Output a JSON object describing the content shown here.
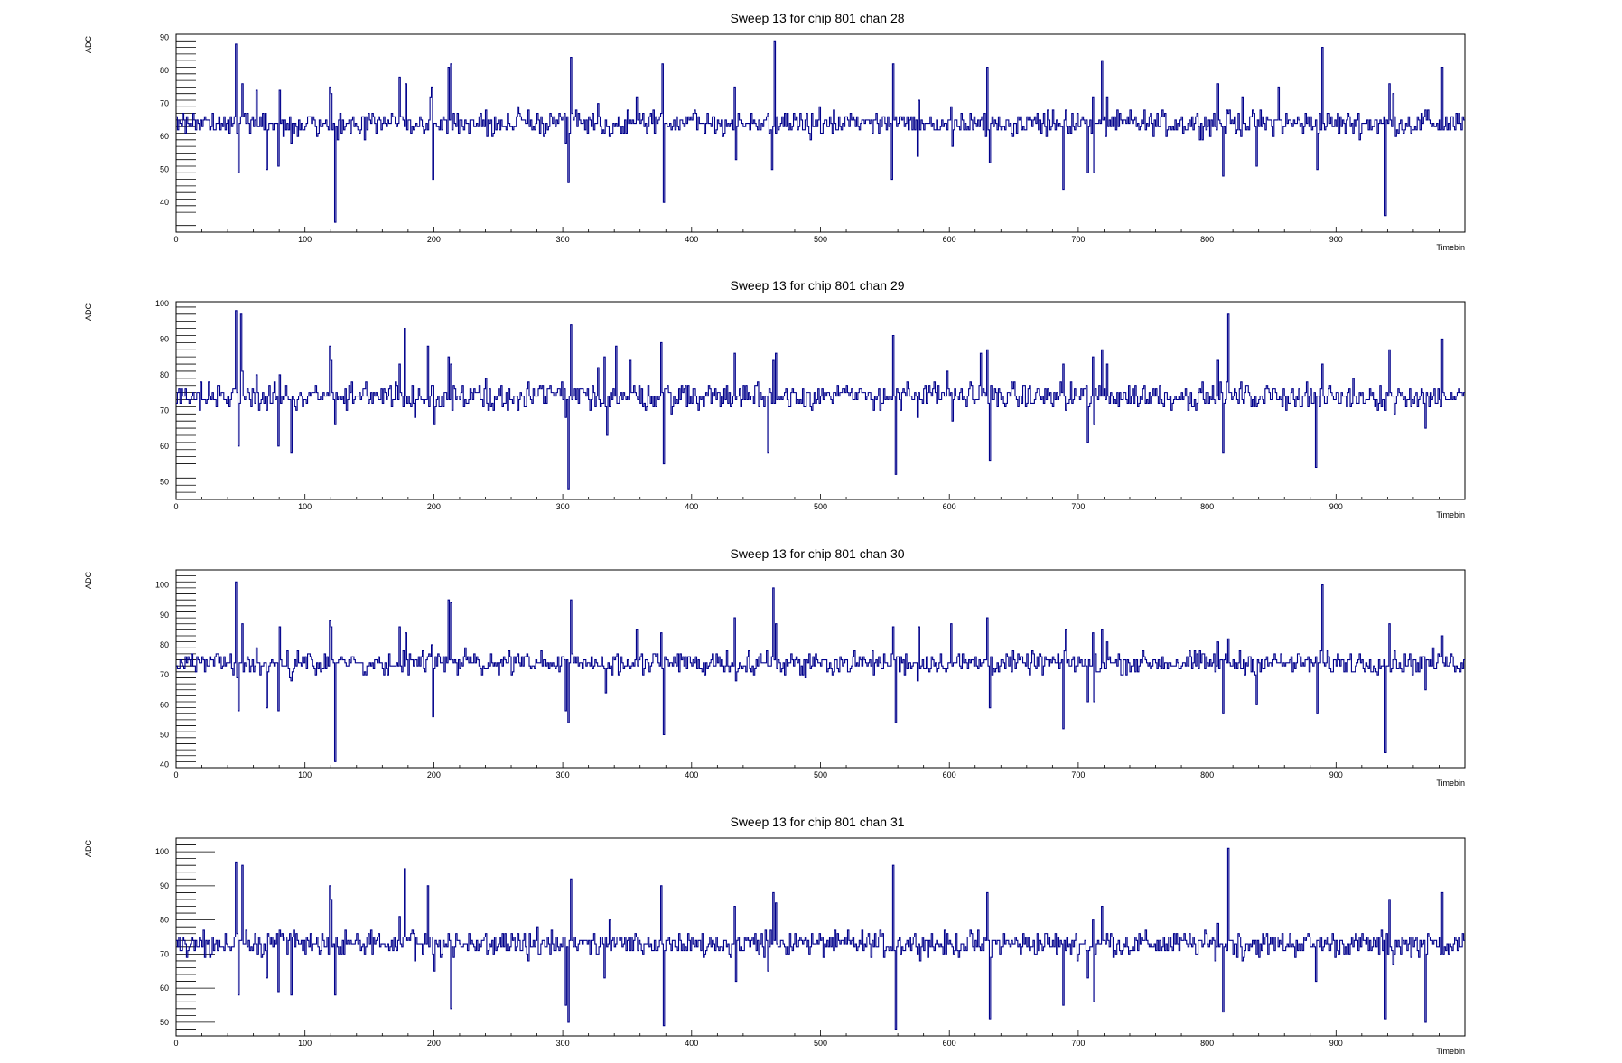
{
  "line_color": "#00008b",
  "x_ticks": [
    0,
    100,
    200,
    300,
    400,
    500,
    600,
    700,
    800,
    900
  ],
  "chart_data": [
    {
      "type": "line",
      "title": "Sweep 13 for chip 801 chan 28",
      "xlabel": "Timebin",
      "ylabel": "ADC",
      "xlim": [
        0,
        1000
      ],
      "ylim": [
        31,
        91
      ],
      "y_ticks": [
        40,
        50,
        60,
        70,
        80,
        90
      ],
      "baseline": 64,
      "noise": 1.8,
      "seed": 28,
      "spikes": [
        [
          46,
          88
        ],
        [
          48,
          49
        ],
        [
          51,
          76
        ],
        [
          62,
          74
        ],
        [
          70,
          50
        ],
        [
          79,
          51
        ],
        [
          80,
          74
        ],
        [
          89,
          58
        ],
        [
          119,
          75
        ],
        [
          120,
          73
        ],
        [
          123,
          34
        ],
        [
          173,
          78
        ],
        [
          178,
          76
        ],
        [
          197,
          72
        ],
        [
          198,
          75
        ],
        [
          199,
          47
        ],
        [
          211,
          81
        ],
        [
          213,
          82
        ],
        [
          306,
          84
        ],
        [
          304,
          46
        ],
        [
          302,
          58
        ],
        [
          327,
          70
        ],
        [
          332,
          61
        ],
        [
          336,
          60
        ],
        [
          357,
          72
        ],
        [
          362,
          67
        ],
        [
          377,
          82
        ],
        [
          378,
          40
        ],
        [
          433,
          75
        ],
        [
          434,
          53
        ],
        [
          464,
          89
        ],
        [
          462,
          50
        ],
        [
          556,
          82
        ],
        [
          555,
          47
        ],
        [
          575,
          54
        ],
        [
          576,
          71
        ],
        [
          601,
          69
        ],
        [
          602,
          57
        ],
        [
          625,
          66
        ],
        [
          629,
          81
        ],
        [
          631,
          52
        ],
        [
          688,
          44
        ],
        [
          690,
          68
        ],
        [
          707,
          49
        ],
        [
          711,
          72
        ],
        [
          712,
          49
        ],
        [
          718,
          83
        ],
        [
          722,
          72
        ],
        [
          808,
          76
        ],
        [
          812,
          48
        ],
        [
          816,
          67
        ],
        [
          827,
          72
        ],
        [
          838,
          51
        ],
        [
          855,
          75
        ],
        [
          885,
          50
        ],
        [
          889,
          87
        ],
        [
          938,
          36
        ],
        [
          941,
          76
        ],
        [
          944,
          73
        ],
        [
          969,
          68
        ],
        [
          982,
          81
        ]
      ]
    },
    {
      "type": "line",
      "title": "Sweep 13 for chip 801 chan 29",
      "xlabel": "Timebin",
      "ylabel": "ADC",
      "xlim": [
        0,
        1000
      ],
      "ylim": [
        45,
        100.5
      ],
      "y_ticks": [
        50,
        60,
        70,
        80,
        90,
        100
      ],
      "baseline": 74,
      "noise": 1.8,
      "seed": 29,
      "spikes": [
        [
          46,
          98
        ],
        [
          48,
          60
        ],
        [
          50,
          97
        ],
        [
          51,
          81
        ],
        [
          62,
          80
        ],
        [
          70,
          70
        ],
        [
          79,
          60
        ],
        [
          80,
          80
        ],
        [
          89,
          58
        ],
        [
          119,
          88
        ],
        [
          120,
          84
        ],
        [
          123,
          66
        ],
        [
          173,
          83
        ],
        [
          177,
          93
        ],
        [
          185,
          68
        ],
        [
          195,
          88
        ],
        [
          200,
          66
        ],
        [
          211,
          85
        ],
        [
          213,
          83
        ],
        [
          302,
          68
        ],
        [
          304,
          48
        ],
        [
          306,
          94
        ],
        [
          327,
          82
        ],
        [
          332,
          85
        ],
        [
          334,
          63
        ],
        [
          341,
          88
        ],
        [
          352,
          84
        ],
        [
          360,
          72
        ],
        [
          376,
          89
        ],
        [
          378,
          55
        ],
        [
          433,
          86
        ],
        [
          434,
          73
        ],
        [
          463,
          84
        ],
        [
          465,
          86
        ],
        [
          459,
          58
        ],
        [
          556,
          91
        ],
        [
          558,
          52
        ],
        [
          575,
          68
        ],
        [
          581,
          77
        ],
        [
          598,
          81
        ],
        [
          602,
          67
        ],
        [
          624,
          86
        ],
        [
          629,
          87
        ],
        [
          631,
          56
        ],
        [
          688,
          83
        ],
        [
          690,
          70
        ],
        [
          707,
          61
        ],
        [
          711,
          85
        ],
        [
          712,
          66
        ],
        [
          718,
          87
        ],
        [
          722,
          83
        ],
        [
          808,
          84
        ],
        [
          812,
          58
        ],
        [
          816,
          97
        ],
        [
          827,
          73
        ],
        [
          838,
          71
        ],
        [
          855,
          73
        ],
        [
          884,
          54
        ],
        [
          889,
          83
        ],
        [
          938,
          70
        ],
        [
          941,
          87
        ],
        [
          944,
          74
        ],
        [
          969,
          65
        ],
        [
          982,
          90
        ]
      ]
    },
    {
      "type": "line",
      "title": "Sweep 13 for chip 801 chan 30",
      "xlabel": "Timebin",
      "ylabel": "ADC",
      "xlim": [
        0,
        1000
      ],
      "ylim": [
        39,
        105
      ],
      "y_ticks": [
        40,
        50,
        60,
        70,
        80,
        90,
        100
      ],
      "baseline": 74,
      "noise": 1.8,
      "seed": 30,
      "spikes": [
        [
          46,
          101
        ],
        [
          48,
          58
        ],
        [
          51,
          87
        ],
        [
          62,
          79
        ],
        [
          70,
          59
        ],
        [
          79,
          58
        ],
        [
          80,
          86
        ],
        [
          89,
          68
        ],
        [
          119,
          88
        ],
        [
          120,
          86
        ],
        [
          123,
          41
        ],
        [
          173,
          86
        ],
        [
          178,
          84
        ],
        [
          198,
          80
        ],
        [
          199,
          56
        ],
        [
          211,
          95
        ],
        [
          213,
          94
        ],
        [
          302,
          58
        ],
        [
          304,
          54
        ],
        [
          306,
          95
        ],
        [
          327,
          73
        ],
        [
          333,
          64
        ],
        [
          336,
          72
        ],
        [
          357,
          85
        ],
        [
          362,
          70
        ],
        [
          376,
          84
        ],
        [
          378,
          50
        ],
        [
          433,
          89
        ],
        [
          434,
          68
        ],
        [
          463,
          99
        ],
        [
          465,
          87
        ],
        [
          556,
          86
        ],
        [
          558,
          54
        ],
        [
          575,
          68
        ],
        [
          576,
          86
        ],
        [
          601,
          87
        ],
        [
          602,
          73
        ],
        [
          625,
          74
        ],
        [
          629,
          89
        ],
        [
          631,
          59
        ],
        [
          688,
          52
        ],
        [
          690,
          85
        ],
        [
          707,
          61
        ],
        [
          711,
          84
        ],
        [
          712,
          61
        ],
        [
          718,
          85
        ],
        [
          722,
          81
        ],
        [
          808,
          81
        ],
        [
          812,
          57
        ],
        [
          816,
          82
        ],
        [
          827,
          72
        ],
        [
          838,
          60
        ],
        [
          855,
          74
        ],
        [
          885,
          57
        ],
        [
          889,
          100
        ],
        [
          938,
          44
        ],
        [
          941,
          87
        ],
        [
          944,
          75
        ],
        [
          969,
          65
        ],
        [
          982,
          83
        ]
      ]
    },
    {
      "type": "line",
      "title": "Sweep 13 for chip 801 chan 31",
      "xlabel": "Timebin",
      "ylabel": "ADC",
      "xlim": [
        0,
        1000
      ],
      "ylim": [
        46,
        104
      ],
      "y_ticks": [
        50,
        60,
        70,
        80,
        90,
        100
      ],
      "baseline": 73,
      "noise": 1.8,
      "seed": 31,
      "spikes": [
        [
          46,
          97
        ],
        [
          48,
          58
        ],
        [
          51,
          96
        ],
        [
          62,
          73
        ],
        [
          70,
          63
        ],
        [
          79,
          59
        ],
        [
          80,
          77
        ],
        [
          89,
          58
        ],
        [
          119,
          90
        ],
        [
          120,
          86
        ],
        [
          123,
          58
        ],
        [
          173,
          81
        ],
        [
          177,
          95
        ],
        [
          185,
          68
        ],
        [
          195,
          90
        ],
        [
          200,
          65
        ],
        [
          211,
          76
        ],
        [
          213,
          54
        ],
        [
          302,
          55
        ],
        [
          304,
          50
        ],
        [
          306,
          92
        ],
        [
          327,
          70
        ],
        [
          332,
          63
        ],
        [
          336,
          80
        ],
        [
          357,
          75
        ],
        [
          362,
          70
        ],
        [
          376,
          90
        ],
        [
          378,
          49
        ],
        [
          433,
          84
        ],
        [
          434,
          62
        ],
        [
          463,
          88
        ],
        [
          465,
          85
        ],
        [
          459,
          65
        ],
        [
          556,
          96
        ],
        [
          558,
          48
        ],
        [
          575,
          70
        ],
        [
          581,
          74
        ],
        [
          598,
          76
        ],
        [
          602,
          72
        ],
        [
          624,
          71
        ],
        [
          629,
          88
        ],
        [
          631,
          51
        ],
        [
          688,
          55
        ],
        [
          690,
          71
        ],
        [
          707,
          63
        ],
        [
          711,
          80
        ],
        [
          712,
          56
        ],
        [
          718,
          84
        ],
        [
          722,
          76
        ],
        [
          808,
          79
        ],
        [
          812,
          53
        ],
        [
          816,
          101
        ],
        [
          827,
          68
        ],
        [
          838,
          70
        ],
        [
          855,
          72
        ],
        [
          884,
          62
        ],
        [
          889,
          71
        ],
        [
          938,
          51
        ],
        [
          941,
          86
        ],
        [
          944,
          67
        ],
        [
          969,
          50
        ],
        [
          982,
          88
        ]
      ]
    }
  ]
}
